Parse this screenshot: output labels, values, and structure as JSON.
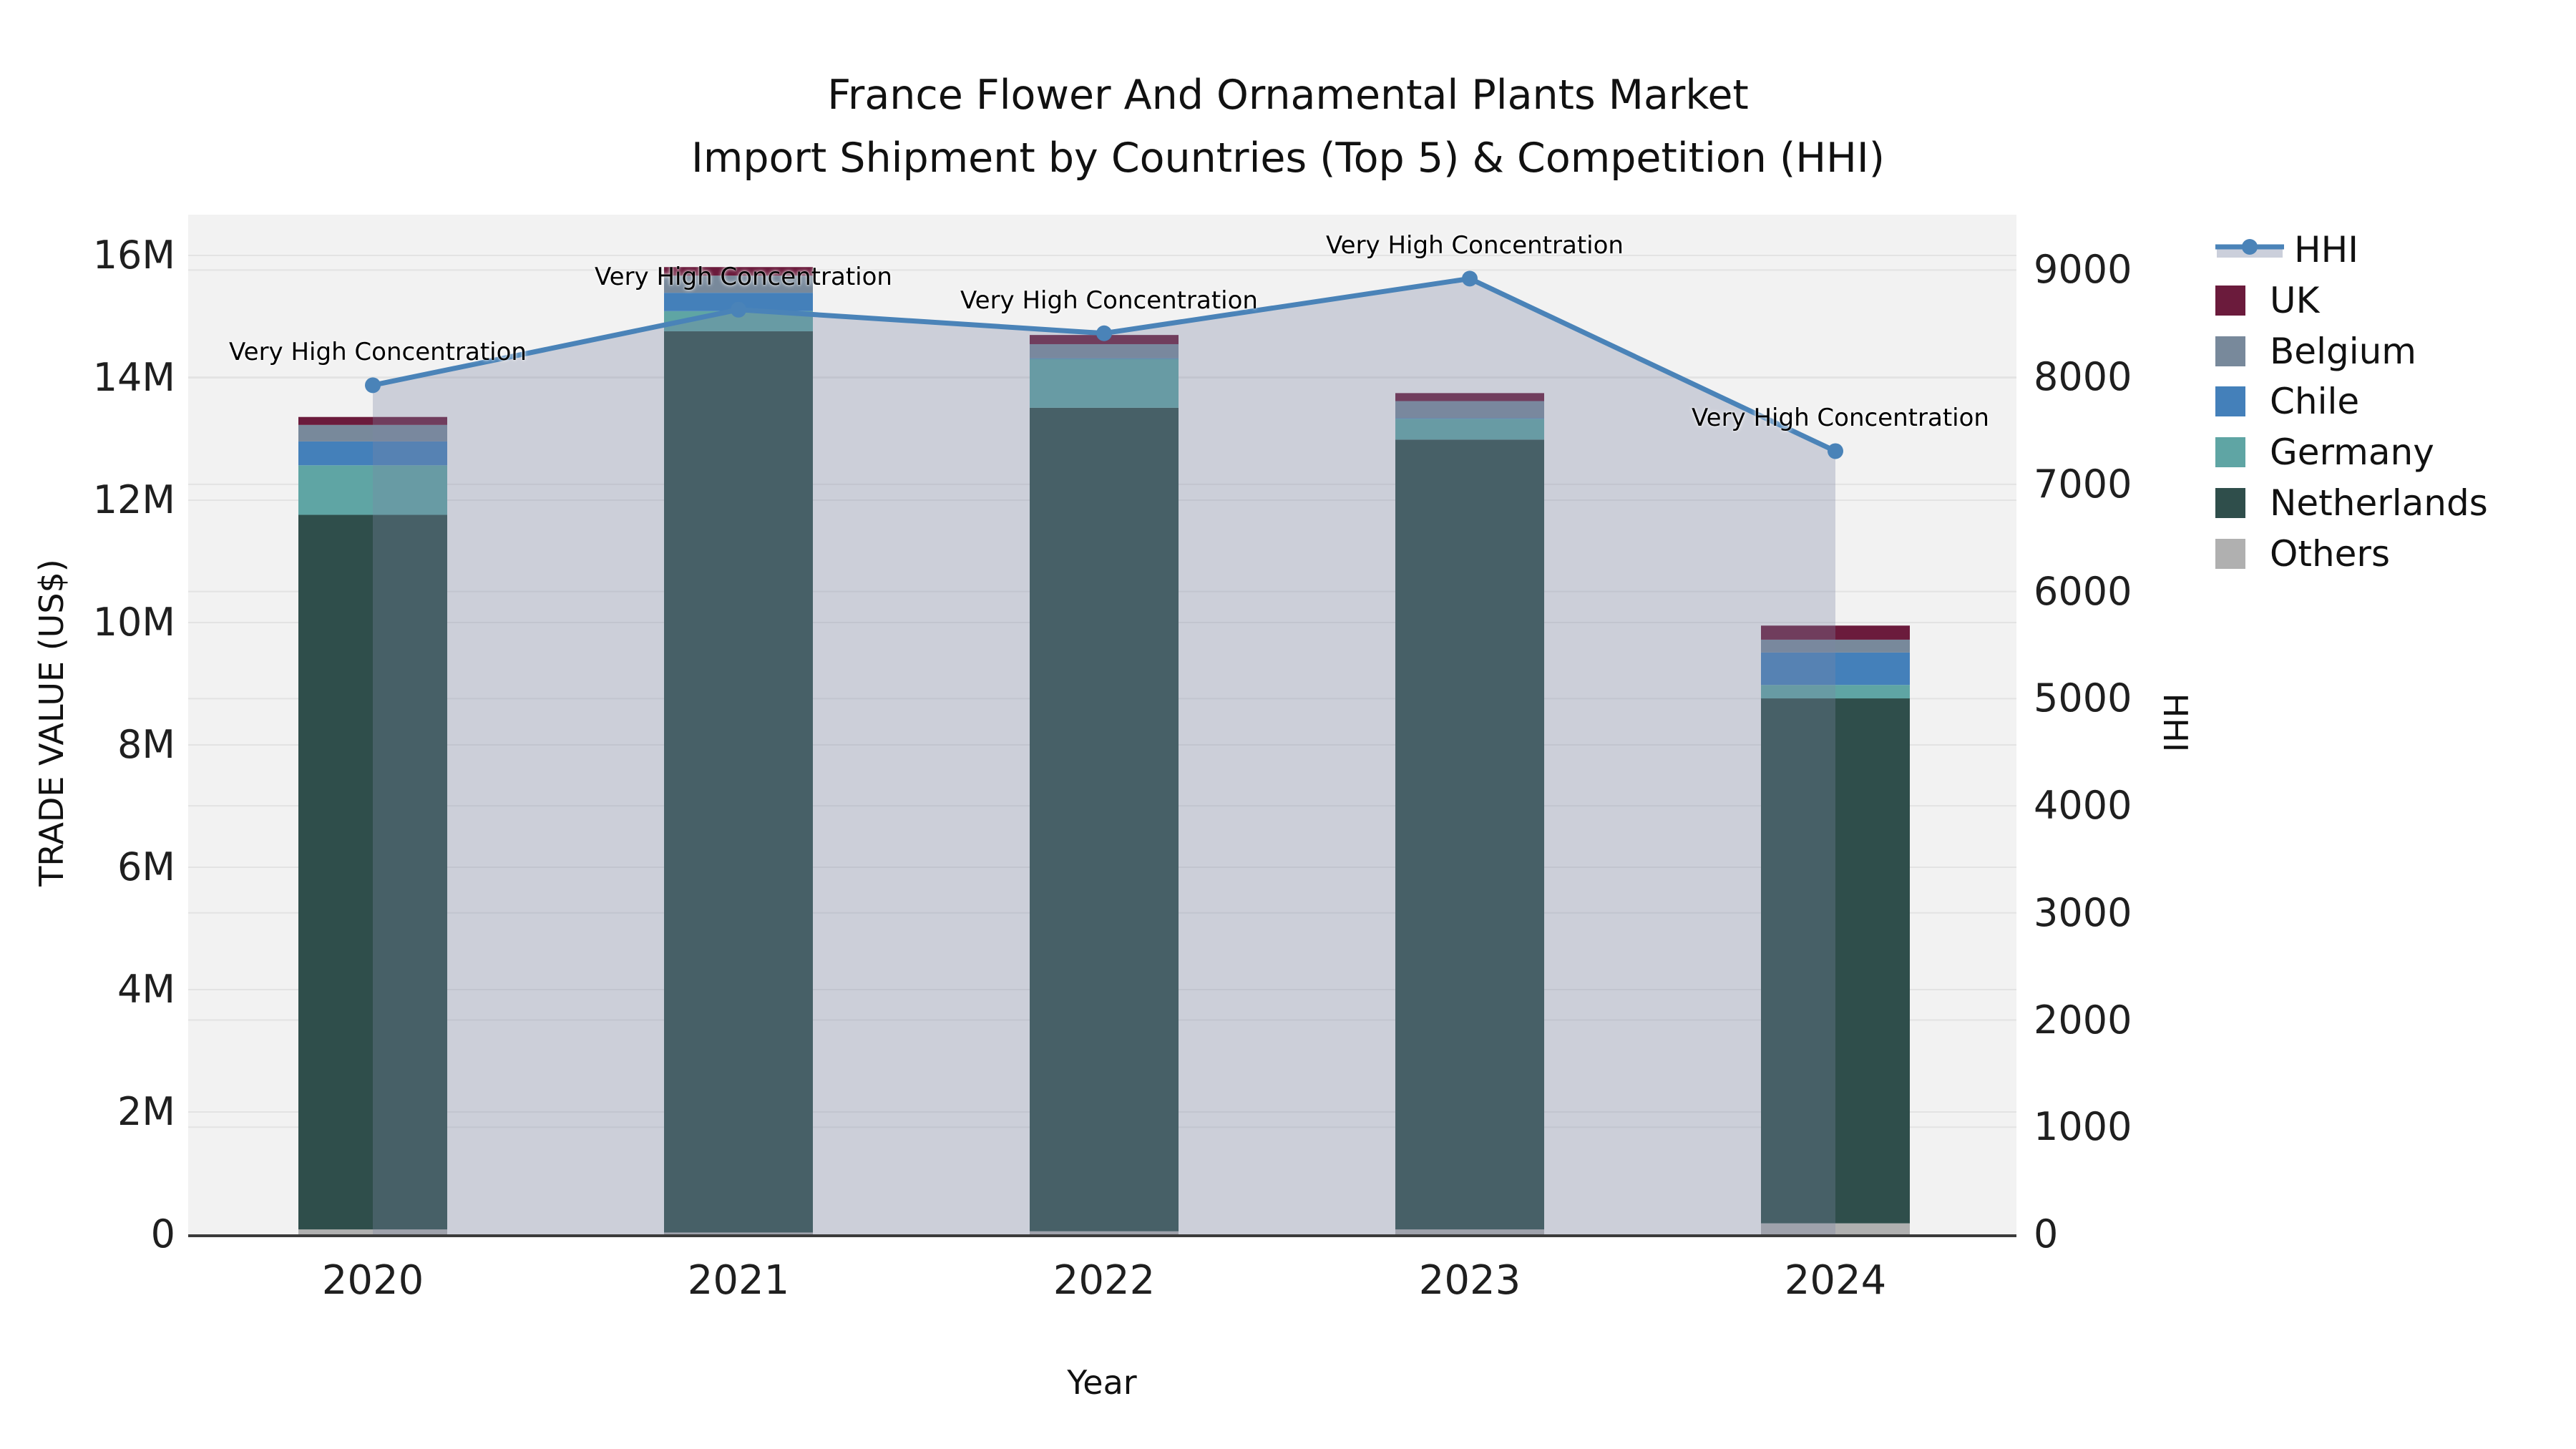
{
  "title": {
    "line1": "France Flower And Ornamental Plants Market",
    "line2": "Import Shipment by Countries (Top 5) & Competition (HHI)"
  },
  "axes": {
    "y_left": {
      "title": "TRADE VALUE (US$)",
      "ticks": [
        "0",
        "2M",
        "4M",
        "6M",
        "8M",
        "10M",
        "12M",
        "14M",
        "16M"
      ],
      "max_millions": 16
    },
    "y_right": {
      "title": "HHI",
      "ticks": [
        "0",
        "1000",
        "2000",
        "3000",
        "4000",
        "5000",
        "6000",
        "7000",
        "8000",
        "9000"
      ],
      "max": 9000
    },
    "x": {
      "title": "Year"
    }
  },
  "legend": {
    "items": [
      {
        "key": "hhi",
        "label": "HHI",
        "type": "line",
        "color": "#4a83b8"
      },
      {
        "key": "uk",
        "label": "UK",
        "type": "box",
        "color": "#6b1b3c"
      },
      {
        "key": "belgium",
        "label": "Belgium",
        "type": "box",
        "color": "#78899b"
      },
      {
        "key": "chile",
        "label": "Chile",
        "type": "box",
        "color": "#4480ba"
      },
      {
        "key": "germany",
        "label": "Germany",
        "type": "box",
        "color": "#5fa5a4"
      },
      {
        "key": "netherlands",
        "label": "Netherlands",
        "type": "box",
        "color": "#2f4e4b"
      },
      {
        "key": "others",
        "label": "Others",
        "type": "box",
        "color": "#b0b0b0"
      }
    ]
  },
  "colors": {
    "hhi_line": "#4a83b8",
    "hhi_area_fill": "rgba(125,135,165,0.32)",
    "plot_background": "#f2f2f2",
    "gridline": "#e3e3e3",
    "x_axis_line": "#3b3b3b"
  },
  "chart_data": {
    "type": "stacked-bar+line",
    "title": "France Flower And Ornamental Plants Market — Import Shipment by Countries (Top 5) & Competition (HHI)",
    "categories": [
      "2020",
      "2021",
      "2022",
      "2023",
      "2024"
    ],
    "xlabel": "Year",
    "ylabel_left": "TRADE VALUE (US$)",
    "ylabel_right": "HHI",
    "ylim_left_millions": [
      0,
      16
    ],
    "ylim_right": [
      0,
      9000
    ],
    "grid": true,
    "legend_position": "right",
    "units": "US$ millions",
    "series": [
      {
        "name": "UK",
        "key": "uk",
        "color": "#6b1b3c",
        "values_millions": [
          0.13,
          0.14,
          0.15,
          0.13,
          0.23
        ]
      },
      {
        "name": "Belgium",
        "key": "belgium",
        "color": "#78899b",
        "values_millions": [
          0.27,
          0.28,
          0.23,
          0.28,
          0.21
        ]
      },
      {
        "name": "Chile",
        "key": "chile",
        "color": "#4480ba",
        "values_millions": [
          0.39,
          0.3,
          0.01,
          0.01,
          0.53
        ]
      },
      {
        "name": "Germany",
        "key": "germany",
        "color": "#5fa5a4",
        "values_millions": [
          0.81,
          0.33,
          0.8,
          0.34,
          0.22
        ]
      },
      {
        "name": "Netherlands",
        "key": "netherlands",
        "color": "#2f4e4b",
        "values_millions": [
          11.68,
          14.73,
          13.46,
          12.91,
          8.58
        ]
      },
      {
        "name": "Others",
        "key": "others",
        "color": "#b0b0b0",
        "values_millions": [
          0.08,
          0.03,
          0.05,
          0.08,
          0.18
        ]
      }
    ],
    "bar_totals_millions": [
      13.36,
      15.81,
      14.7,
      13.75,
      9.95
    ],
    "line_series": {
      "name": "HHI",
      "axis": "right",
      "color": "#4a83b8",
      "values": [
        7925,
        8630,
        8410,
        8920,
        7310
      ]
    },
    "point_annotations": [
      "Very High Concentration",
      "Very High Concentration",
      "Very High Concentration",
      "Very High Concentration",
      "Very High Concentration"
    ]
  }
}
